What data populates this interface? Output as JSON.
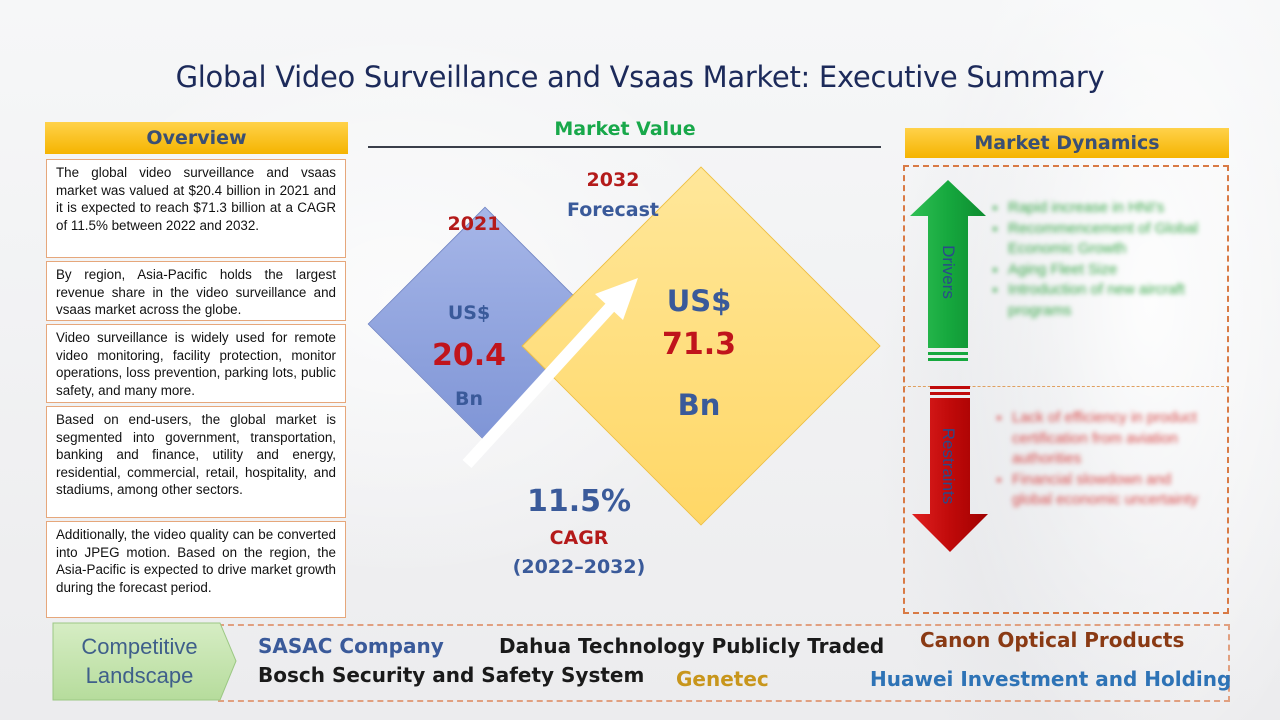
{
  "title": "Global Video Surveillance and Vsaas Market: Executive Summary",
  "overview": {
    "header": "Overview",
    "items": [
      "The global video surveillance and vsaas market was valued at $20.4 billion in 2021 and it is expected to reach $71.3 billion at a CAGR of 11.5% between 2022 and 2032.",
      "By region, Asia-Pacific holds the largest revenue share in the video surveillance and vsaas market across the globe.",
      "Video surveillance is widely used for remote video monitoring, facility protection, monitor operations, loss prevention, parking lots, public safety, and many more.",
      "Based on end-users, the global market is segmented into government, transportation, banking and finance, utility and energy, residential, commercial, retail, hospitality, and stadiums, among other sectors.",
      "Additionally, the video quality can be converted into JPEG motion. Based on the region, the Asia-Pacific is expected to drive market growth during the forecast period."
    ]
  },
  "market_value": {
    "header": "Market Value",
    "y2021": {
      "year": "2021",
      "currency": "US$",
      "value": "20.4",
      "unit": "Bn"
    },
    "y2032": {
      "year": "2032",
      "forecast": "Forecast",
      "currency": "US$",
      "value": "71.3",
      "unit": "Bn"
    },
    "cagr": {
      "value": "11.5%",
      "label": "CAGR",
      "period": "(2022–2032)"
    }
  },
  "market_dynamics": {
    "header": "Market Dynamics",
    "drivers_label": "Drivers",
    "restraints_label": "Restraints",
    "drivers": [
      "Rapid increase in HNI's",
      "Recommencement of Global Economic Growth",
      "Aging Fleet Size",
      "Introduction of new aircraft programs"
    ],
    "restraints": [
      "Lack of efficiency in product certification from aviation authorities",
      "Financial slowdown and global economic uncertainty"
    ]
  },
  "competitive_landscape": {
    "label_line1": "Competitive",
    "label_line2": "Landscape",
    "companies": [
      "SASAC Company",
      "Dahua Technology Publicly Traded",
      "Canon Optical Products",
      "Bosch Security and Safety System",
      "Genetec",
      "Huawei Investment and Holding"
    ]
  },
  "colors": {
    "title": "#1c2a5a",
    "header_bg": "#f5b400",
    "green": "#18a84a",
    "red": "#c0141c",
    "blue": "#3a5a9a"
  }
}
